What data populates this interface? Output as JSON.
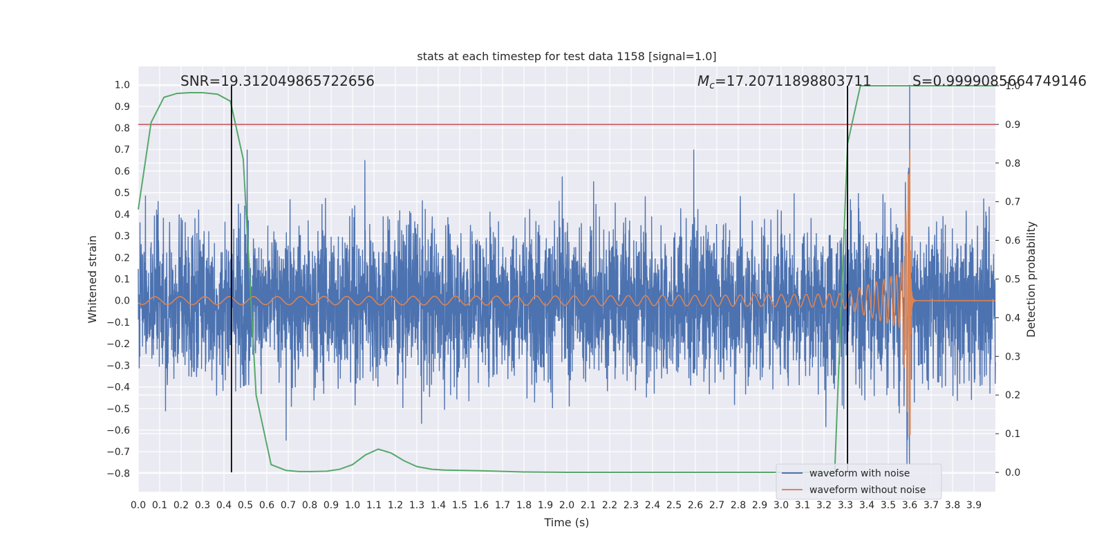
{
  "chart_data": {
    "type": "line",
    "title": "stats at each timestep for test data 1158 [signal=1.0]",
    "xlabel": "Time (s)",
    "ylabel": "Whitened strain",
    "y2label": "Detection probability",
    "xlim": [
      0.0,
      4.0
    ],
    "ylim": [
      -0.885,
      1.085
    ],
    "y2lim": [
      -0.05,
      1.05
    ],
    "xticks": [
      "0.0",
      "0.1",
      "0.2",
      "0.3",
      "0.4",
      "0.5",
      "0.6",
      "0.7",
      "0.8",
      "0.9",
      "1.0",
      "1.1",
      "1.2",
      "1.3",
      "1.4",
      "1.5",
      "1.6",
      "1.7",
      "1.8",
      "1.9",
      "2.0",
      "2.1",
      "2.2",
      "2.3",
      "2.4",
      "2.5",
      "2.6",
      "2.7",
      "2.8",
      "2.9",
      "3.0",
      "3.1",
      "3.2",
      "3.3",
      "3.4",
      "3.5",
      "3.6",
      "3.7",
      "3.8",
      "3.9"
    ],
    "yticks": [
      "1.0",
      "0.9",
      "0.8",
      "0.7",
      "0.6",
      "0.5",
      "0.4",
      "0.3",
      "0.2",
      "0.1",
      "0.0",
      "−0.1",
      "−0.2",
      "−0.3",
      "−0.4",
      "−0.5",
      "−0.6",
      "−0.7",
      "−0.8"
    ],
    "y2ticks": [
      "1.0",
      "0.9",
      "0.8",
      "0.7",
      "0.6",
      "0.5",
      "0.4",
      "0.3",
      "0.2",
      "0.1",
      "0.0"
    ],
    "grid": true,
    "legend_position": "lower-right",
    "annotations": {
      "snr": "SNR=19.312049865722656",
      "mc_symbol": "M",
      "mc_subscript": "c",
      "mc_value": "=17.20711898803711",
      "s": "S=0.9999085664749146"
    },
    "series": [
      {
        "name": "waveform with noise",
        "color": "#4c72b0",
        "axis": "left",
        "description": "dense noisy strain, amplitude mostly within ±0.45, peaks near 0.65/-0.75",
        "noise_std": 0.18,
        "peak_x": 3.6,
        "peak_y": 1.0
      },
      {
        "name": "waveform without noise",
        "color": "#dd8452",
        "axis": "left",
        "description": "chirp signal increasing in frequency and amplitude until merger at ~3.6 s",
        "start_amplitude": 0.02,
        "merger_x": 3.6,
        "merger_max": 0.7,
        "merger_min": -0.62
      },
      {
        "name": "",
        "color": "#55a868",
        "axis": "right",
        "x": [
          0.0,
          0.06,
          0.12,
          0.18,
          0.24,
          0.3,
          0.37,
          0.43,
          0.49,
          0.55,
          0.62,
          0.69,
          0.75,
          0.81,
          0.88,
          0.94,
          1.0,
          1.06,
          1.12,
          1.18,
          1.24,
          1.3,
          1.37,
          1.43,
          1.6,
          1.8,
          2.0,
          2.5,
          3.0,
          3.25,
          3.31,
          3.37,
          3.5,
          3.7,
          4.0
        ],
        "y": [
          0.68,
          0.905,
          0.97,
          0.98,
          0.982,
          0.982,
          0.978,
          0.96,
          0.81,
          0.2,
          0.02,
          0.005,
          0.002,
          0.002,
          0.003,
          0.008,
          0.02,
          0.045,
          0.06,
          0.05,
          0.03,
          0.015,
          0.008,
          0.006,
          0.004,
          0.001,
          0.0,
          0.0,
          0.0,
          0.0,
          0.85,
          1.0,
          1.0,
          1.0,
          1.0
        ]
      }
    ],
    "threshold": {
      "color": "#c44e52",
      "y2": 0.9
    },
    "vlines": [
      {
        "x": 0.435,
        "color": "#000000",
        "y2_from": 0.0,
        "y2_to": 1.0
      },
      {
        "x": 3.31,
        "color": "#000000",
        "y2_from": 0.0,
        "y2_to": 1.0
      }
    ]
  }
}
